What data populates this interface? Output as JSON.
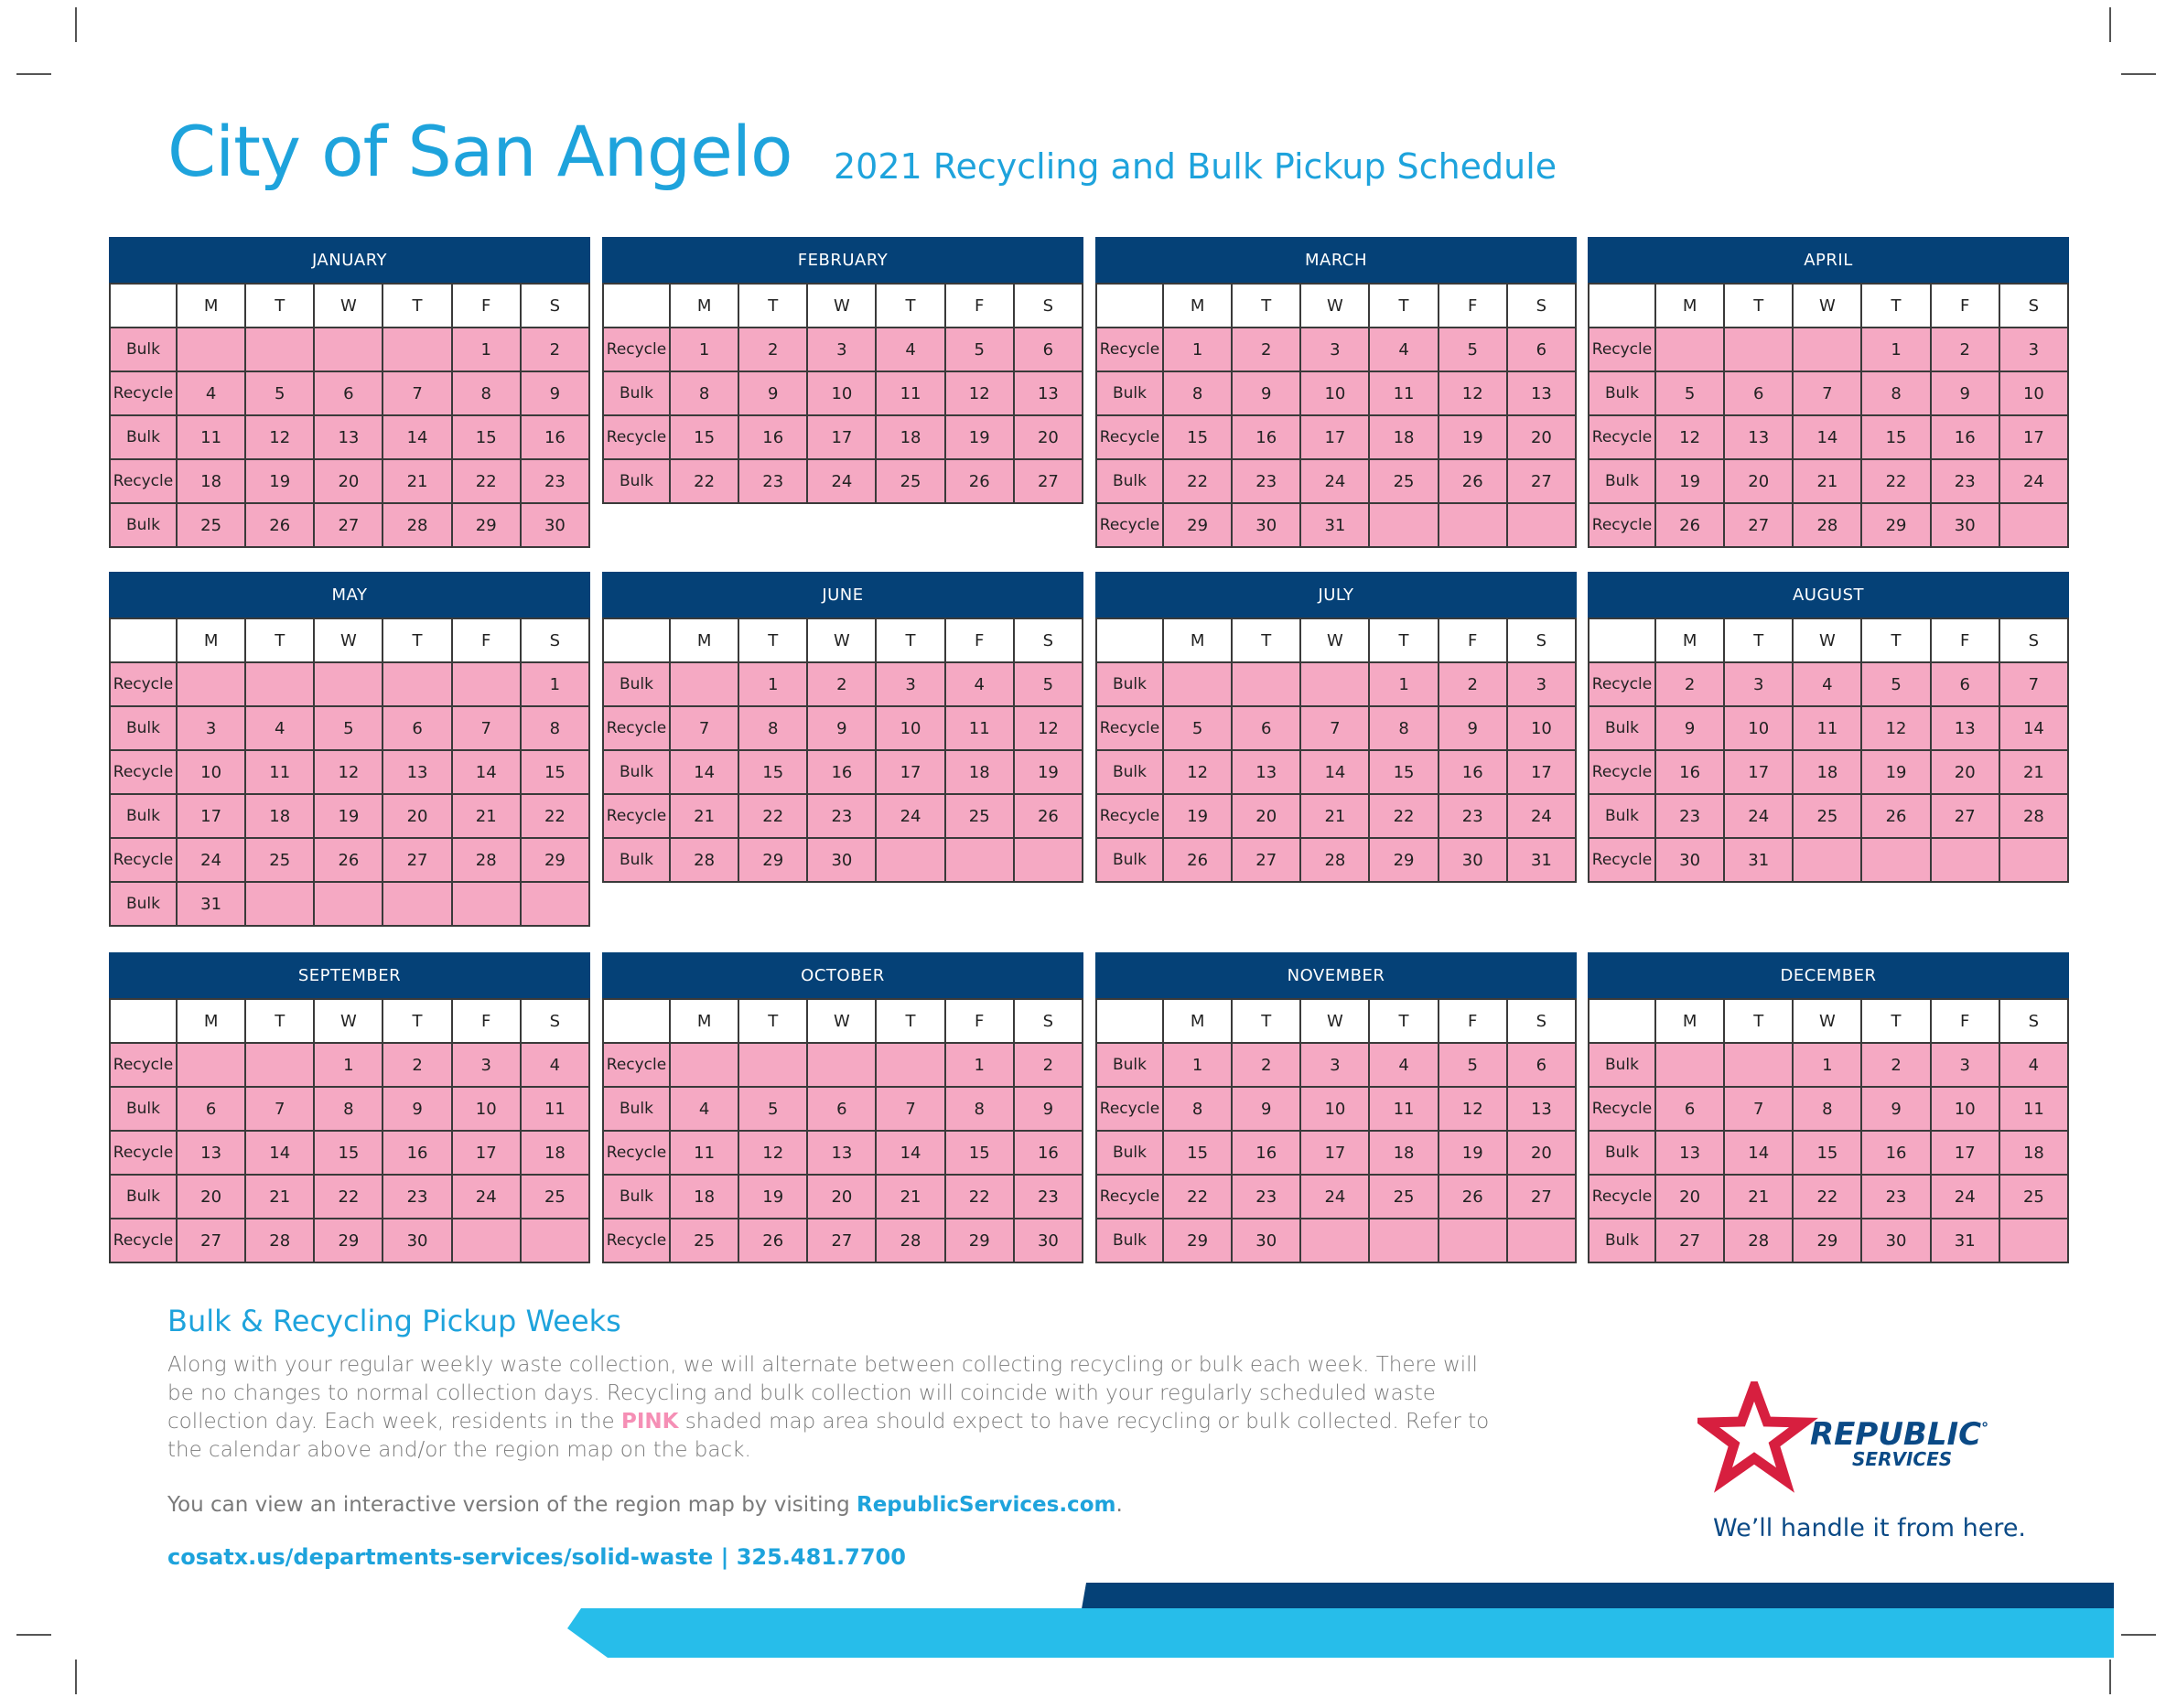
{
  "header": {
    "title": "City of San Angelo",
    "subtitle": "2021 Recycling and Bulk Pickup Schedule"
  },
  "weekdays": [
    "M",
    "T",
    "W",
    "T",
    "F",
    "S"
  ],
  "months": [
    {
      "name": "JANUARY",
      "weeks": [
        {
          "type": "Bulk",
          "days": [
            "",
            "",
            "",
            "",
            "1",
            "2"
          ]
        },
        {
          "type": "Recycle",
          "days": [
            "4",
            "5",
            "6",
            "7",
            "8",
            "9"
          ]
        },
        {
          "type": "Bulk",
          "days": [
            "11",
            "12",
            "13",
            "14",
            "15",
            "16"
          ]
        },
        {
          "type": "Recycle",
          "days": [
            "18",
            "19",
            "20",
            "21",
            "22",
            "23"
          ]
        },
        {
          "type": "Bulk",
          "days": [
            "25",
            "26",
            "27",
            "28",
            "29",
            "30"
          ]
        }
      ]
    },
    {
      "name": "FEBRUARY",
      "weeks": [
        {
          "type": "Recycle",
          "days": [
            "1",
            "2",
            "3",
            "4",
            "5",
            "6"
          ]
        },
        {
          "type": "Bulk",
          "days": [
            "8",
            "9",
            "10",
            "11",
            "12",
            "13"
          ]
        },
        {
          "type": "Recycle",
          "days": [
            "15",
            "16",
            "17",
            "18",
            "19",
            "20"
          ]
        },
        {
          "type": "Bulk",
          "days": [
            "22",
            "23",
            "24",
            "25",
            "26",
            "27"
          ]
        }
      ]
    },
    {
      "name": "MARCH",
      "weeks": [
        {
          "type": "Recycle",
          "days": [
            "1",
            "2",
            "3",
            "4",
            "5",
            "6"
          ]
        },
        {
          "type": "Bulk",
          "days": [
            "8",
            "9",
            "10",
            "11",
            "12",
            "13"
          ]
        },
        {
          "type": "Recycle",
          "days": [
            "15",
            "16",
            "17",
            "18",
            "19",
            "20"
          ]
        },
        {
          "type": "Bulk",
          "days": [
            "22",
            "23",
            "24",
            "25",
            "26",
            "27"
          ]
        },
        {
          "type": "Recycle",
          "days": [
            "29",
            "30",
            "31",
            "",
            "",
            ""
          ]
        }
      ]
    },
    {
      "name": "APRIL",
      "weeks": [
        {
          "type": "Recycle",
          "days": [
            "",
            "",
            "",
            "1",
            "2",
            "3"
          ]
        },
        {
          "type": "Bulk",
          "days": [
            "5",
            "6",
            "7",
            "8",
            "9",
            "10"
          ]
        },
        {
          "type": "Recycle",
          "days": [
            "12",
            "13",
            "14",
            "15",
            "16",
            "17"
          ]
        },
        {
          "type": "Bulk",
          "days": [
            "19",
            "20",
            "21",
            "22",
            "23",
            "24"
          ]
        },
        {
          "type": "Recycle",
          "days": [
            "26",
            "27",
            "28",
            "29",
            "30",
            ""
          ]
        }
      ]
    },
    {
      "name": "MAY",
      "weeks": [
        {
          "type": "Recycle",
          "days": [
            "",
            "",
            "",
            "",
            "",
            "1"
          ]
        },
        {
          "type": "Bulk",
          "days": [
            "3",
            "4",
            "5",
            "6",
            "7",
            "8"
          ]
        },
        {
          "type": "Recycle",
          "days": [
            "10",
            "11",
            "12",
            "13",
            "14",
            "15"
          ]
        },
        {
          "type": "Bulk",
          "days": [
            "17",
            "18",
            "19",
            "20",
            "21",
            "22"
          ]
        },
        {
          "type": "Recycle",
          "days": [
            "24",
            "25",
            "26",
            "27",
            "28",
            "29"
          ]
        },
        {
          "type": "Bulk",
          "days": [
            "31",
            "",
            "",
            "",
            "",
            ""
          ]
        }
      ]
    },
    {
      "name": "JUNE",
      "weeks": [
        {
          "type": "Bulk",
          "days": [
            "",
            "1",
            "2",
            "3",
            "4",
            "5"
          ]
        },
        {
          "type": "Recycle",
          "days": [
            "7",
            "8",
            "9",
            "10",
            "11",
            "12"
          ]
        },
        {
          "type": "Bulk",
          "days": [
            "14",
            "15",
            "16",
            "17",
            "18",
            "19"
          ]
        },
        {
          "type": "Recycle",
          "days": [
            "21",
            "22",
            "23",
            "24",
            "25",
            "26"
          ]
        },
        {
          "type": "Bulk",
          "days": [
            "28",
            "29",
            "30",
            "",
            "",
            ""
          ]
        }
      ]
    },
    {
      "name": "JULY",
      "weeks": [
        {
          "type": "Bulk",
          "days": [
            "",
            "",
            "",
            "1",
            "2",
            "3"
          ]
        },
        {
          "type": "Recycle",
          "days": [
            "5",
            "6",
            "7",
            "8",
            "9",
            "10"
          ]
        },
        {
          "type": "Bulk",
          "days": [
            "12",
            "13",
            "14",
            "15",
            "16",
            "17"
          ]
        },
        {
          "type": "Recycle",
          "days": [
            "19",
            "20",
            "21",
            "22",
            "23",
            "24"
          ]
        },
        {
          "type": "Bulk",
          "days": [
            "26",
            "27",
            "28",
            "29",
            "30",
            "31"
          ]
        }
      ]
    },
    {
      "name": "AUGUST",
      "weeks": [
        {
          "type": "Recycle",
          "days": [
            "2",
            "3",
            "4",
            "5",
            "6",
            "7"
          ]
        },
        {
          "type": "Bulk",
          "days": [
            "9",
            "10",
            "11",
            "12",
            "13",
            "14"
          ]
        },
        {
          "type": "Recycle",
          "days": [
            "16",
            "17",
            "18",
            "19",
            "20",
            "21"
          ]
        },
        {
          "type": "Bulk",
          "days": [
            "23",
            "24",
            "25",
            "26",
            "27",
            "28"
          ]
        },
        {
          "type": "Recycle",
          "days": [
            "30",
            "31",
            "",
            "",
            "",
            ""
          ]
        }
      ]
    },
    {
      "name": "SEPTEMBER",
      "weeks": [
        {
          "type": "Recycle",
          "days": [
            "",
            "",
            "1",
            "2",
            "3",
            "4"
          ]
        },
        {
          "type": "Bulk",
          "days": [
            "6",
            "7",
            "8",
            "9",
            "10",
            "11"
          ]
        },
        {
          "type": "Recycle",
          "days": [
            "13",
            "14",
            "15",
            "16",
            "17",
            "18"
          ]
        },
        {
          "type": "Bulk",
          "days": [
            "20",
            "21",
            "22",
            "23",
            "24",
            "25"
          ]
        },
        {
          "type": "Recycle",
          "days": [
            "27",
            "28",
            "29",
            "30",
            "",
            ""
          ]
        }
      ]
    },
    {
      "name": "OCTOBER",
      "weeks": [
        {
          "type": "Recycle",
          "days": [
            "",
            "",
            "",
            "",
            "1",
            "2"
          ]
        },
        {
          "type": "Bulk",
          "days": [
            "4",
            "5",
            "6",
            "7",
            "8",
            "9"
          ]
        },
        {
          "type": "Recycle",
          "days": [
            "11",
            "12",
            "13",
            "14",
            "15",
            "16"
          ]
        },
        {
          "type": "Bulk",
          "days": [
            "18",
            "19",
            "20",
            "21",
            "22",
            "23"
          ]
        },
        {
          "type": "Recycle",
          "days": [
            "25",
            "26",
            "27",
            "28",
            "29",
            "30"
          ]
        }
      ]
    },
    {
      "name": "NOVEMBER",
      "weeks": [
        {
          "type": "Bulk",
          "days": [
            "1",
            "2",
            "3",
            "4",
            "5",
            "6"
          ]
        },
        {
          "type": "Recycle",
          "days": [
            "8",
            "9",
            "10",
            "11",
            "12",
            "13"
          ]
        },
        {
          "type": "Bulk",
          "days": [
            "15",
            "16",
            "17",
            "18",
            "19",
            "20"
          ]
        },
        {
          "type": "Recycle",
          "days": [
            "22",
            "23",
            "24",
            "25",
            "26",
            "27"
          ]
        },
        {
          "type": "Bulk",
          "days": [
            "29",
            "30",
            "",
            "",
            "",
            ""
          ]
        }
      ]
    },
    {
      "name": "DECEMBER",
      "weeks": [
        {
          "type": "Bulk",
          "days": [
            "",
            "",
            "1",
            "2",
            "3",
            "4"
          ]
        },
        {
          "type": "Recycle",
          "days": [
            "6",
            "7",
            "8",
            "9",
            "10",
            "11"
          ]
        },
        {
          "type": "Bulk",
          "days": [
            "13",
            "14",
            "15",
            "16",
            "17",
            "18"
          ]
        },
        {
          "type": "Recycle",
          "days": [
            "20",
            "21",
            "22",
            "23",
            "24",
            "25"
          ]
        },
        {
          "type": "Bulk",
          "days": [
            "27",
            "28",
            "29",
            "30",
            "31",
            ""
          ]
        }
      ]
    }
  ],
  "info": {
    "heading": "Bulk & Recycling Pickup Weeks",
    "para_before_pink": "Along with your regular weekly waste collection, we will alternate between collecting recycling or bulk each week. There will be no changes to normal collection days. Recycling and bulk collection will coincide with your regularly scheduled waste collection day. Each week, residents in the ",
    "pink_word": "PINK",
    "para_after_pink": " shaded map area should expect to have recycling or bulk collected. Refer to the calendar above and/or the region map on the back.",
    "map_line_text": "You can view an interactive version of the region map by visiting ",
    "map_link": "RepublicServices.com",
    "map_line_end": ".",
    "contact": "cosatx.us/departments-services/solid-waste | 325.481.7700"
  },
  "brand": {
    "name_line1": "REPUBLIC",
    "reg_mark": "°",
    "name_line2": "SERVICES",
    "tagline": "We’ll handle it from here.",
    "colors": {
      "navy": "#054177",
      "blue": "#1ea3dc",
      "pink": "#f5a9c3",
      "red": "#d71f3f",
      "cyan": "#27bdea"
    }
  }
}
